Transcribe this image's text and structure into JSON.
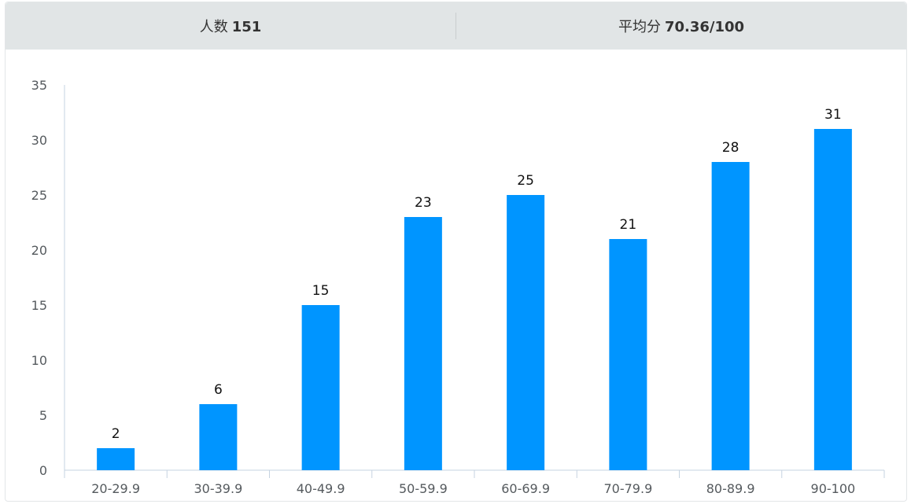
{
  "stats": {
    "count_label": "人数",
    "count_value": "151",
    "avg_label": "平均分",
    "avg_value": "70.36/100"
  },
  "colors": {
    "bar": "#0095ff",
    "axis": "#c6d3e0",
    "header_bg": "#e1e5e6"
  },
  "chart_data": {
    "type": "bar",
    "title": "",
    "xlabel": "",
    "ylabel": "",
    "categories": [
      "20-29.9",
      "30-39.9",
      "40-49.9",
      "50-59.9",
      "60-69.9",
      "70-79.9",
      "80-89.9",
      "90-100"
    ],
    "values": [
      2,
      6,
      15,
      23,
      25,
      21,
      28,
      31
    ],
    "ylim": [
      0,
      35
    ],
    "yticks": [
      0,
      5,
      10,
      15,
      20,
      25,
      30,
      35
    ],
    "data_labels": true,
    "grid": false,
    "legend": "none"
  }
}
